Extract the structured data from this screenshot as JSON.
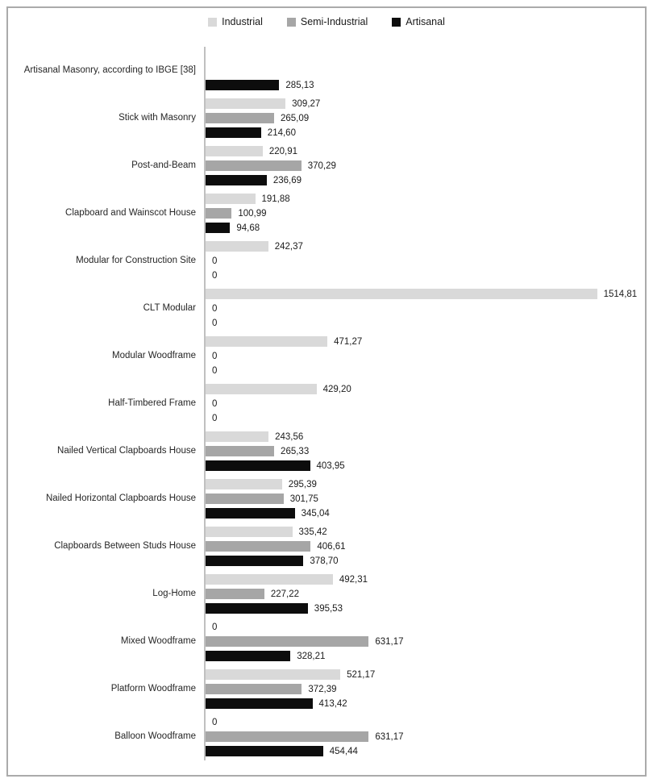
{
  "legend": {
    "items": [
      {
        "label": "Industrial",
        "color": "#d9d9d9"
      },
      {
        "label": "Semi-Industrial",
        "color": "#a6a6a6"
      },
      {
        "label": "Artisanal",
        "color": "#0d0d0d"
      }
    ]
  },
  "chart_data": {
    "type": "bar",
    "orientation": "horizontal",
    "title": "",
    "xlabel": "",
    "ylabel": "",
    "xlim": [
      0,
      1700
    ],
    "grid": false,
    "legend_position": "top-center",
    "decimal_separator": "comma",
    "series_names": [
      "Industrial",
      "Semi-Industrial",
      "Artisanal"
    ],
    "series_colors": [
      "#d9d9d9",
      "#a6a6a6",
      "#0d0d0d"
    ],
    "categories": [
      "Artisanal Masonry, according to IBGE [38]",
      "Stick with Masonry",
      "Post-and-Beam",
      "Clapboard and Wainscot House",
      "Modular for Construction Site",
      "CLT Modular",
      "Modular Woodframe",
      "Half-Timbered Frame",
      "Nailed Vertical Clapboards House",
      "Nailed Horizontal Clapboards House",
      "Clapboards Between Studs House",
      "Log-Home",
      "Mixed Woodframe",
      "Platform Woodframe",
      "Balloon Woodframe"
    ],
    "rows": [
      {
        "category": "Artisanal Masonry, according to IBGE [38]",
        "values": [
          null,
          null,
          285.13
        ],
        "labels": [
          null,
          null,
          "285,13"
        ]
      },
      {
        "category": "Stick with Masonry",
        "values": [
          309.27,
          265.09,
          214.6
        ],
        "labels": [
          "309,27",
          "265,09",
          "214,60"
        ]
      },
      {
        "category": "Post-and-Beam",
        "values": [
          220.91,
          370.29,
          236.69
        ],
        "labels": [
          "220,91",
          "370,29",
          "236,69"
        ]
      },
      {
        "category": "Clapboard and Wainscot House",
        "values": [
          191.88,
          100.99,
          94.68
        ],
        "labels": [
          "191,88",
          "100,99",
          "94,68"
        ]
      },
      {
        "category": "Modular for Construction Site",
        "values": [
          242.37,
          0,
          0
        ],
        "labels": [
          "242,37",
          "0",
          "0"
        ]
      },
      {
        "category": "CLT Modular",
        "values": [
          1514.81,
          0,
          0
        ],
        "labels": [
          "1514,81",
          "0",
          "0"
        ]
      },
      {
        "category": "Modular Woodframe",
        "values": [
          471.27,
          0,
          0
        ],
        "labels": [
          "471,27",
          "0",
          "0"
        ]
      },
      {
        "category": "Half-Timbered Frame",
        "values": [
          429.2,
          0,
          0
        ],
        "labels": [
          "429,20",
          "0",
          "0"
        ]
      },
      {
        "category": "Nailed Vertical Clapboards House",
        "values": [
          243.56,
          265.33,
          403.95
        ],
        "labels": [
          "243,56",
          "265,33",
          "403,95"
        ]
      },
      {
        "category": "Nailed Horizontal Clapboards House",
        "values": [
          295.39,
          301.75,
          345.04
        ],
        "labels": [
          "295,39",
          "301,75",
          "345,04"
        ]
      },
      {
        "category": "Clapboards Between Studs House",
        "values": [
          335.42,
          406.61,
          378.7
        ],
        "labels": [
          "335,42",
          "406,61",
          "378,70"
        ]
      },
      {
        "category": "Log-Home",
        "values": [
          492.31,
          227.22,
          395.53
        ],
        "labels": [
          "492,31",
          "227,22",
          "395,53"
        ]
      },
      {
        "category": "Mixed Woodframe",
        "values": [
          0,
          631.17,
          328.21
        ],
        "labels": [
          "0",
          "631,17",
          "328,21"
        ]
      },
      {
        "category": "Platform Woodframe",
        "values": [
          521.17,
          372.39,
          413.42
        ],
        "labels": [
          "521,17",
          "372,39",
          "413,42"
        ]
      },
      {
        "category": "Balloon Woodframe",
        "values": [
          0,
          631.17,
          454.44
        ],
        "labels": [
          "0",
          "631,17",
          "454,44"
        ]
      }
    ]
  }
}
